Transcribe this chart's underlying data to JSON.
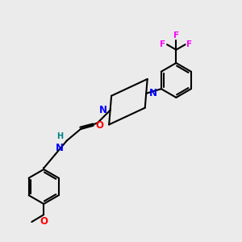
{
  "bg_color": "#ebebeb",
  "bond_color": "#000000",
  "N_color": "#0000ff",
  "O_color": "#ff0000",
  "F_color": "#ff00ff",
  "H_color": "#008080",
  "line_width": 1.5,
  "figsize": [
    3.0,
    3.0
  ],
  "dpi": 100,
  "xlim": [
    0,
    10
  ],
  "ylim": [
    0,
    10
  ]
}
